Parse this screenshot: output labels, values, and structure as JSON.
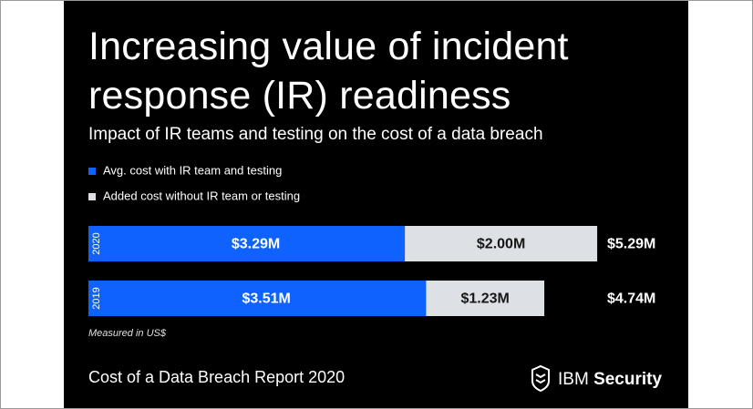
{
  "chart_data": {
    "type": "stacked-bar-horizontal",
    "title": "Increasing value of incident response (IR) readiness",
    "subtitle": "Impact of IR teams and testing on the cost of a data breach",
    "categories": [
      "2020",
      "2019"
    ],
    "series": [
      {
        "name": "Avg. cost with IR team and testing",
        "color": "#0f62fe",
        "values": [
          3.29,
          3.51
        ],
        "value_labels": [
          "$3.29M",
          "$3.51M"
        ]
      },
      {
        "name": "Added cost without IR team or testing",
        "color": "#dde1e6",
        "values": [
          2.0,
          1.23
        ],
        "value_labels": [
          "$2.00M",
          "$1.23M"
        ]
      }
    ],
    "totals": {
      "values": [
        5.29,
        4.74
      ],
      "value_labels": [
        "$5.29M",
        "$4.74M"
      ]
    },
    "note": "Measured in US$",
    "footer": "Cost of a Data Breach Report 2020",
    "brand": {
      "company": "IBM",
      "product": "Security"
    }
  }
}
